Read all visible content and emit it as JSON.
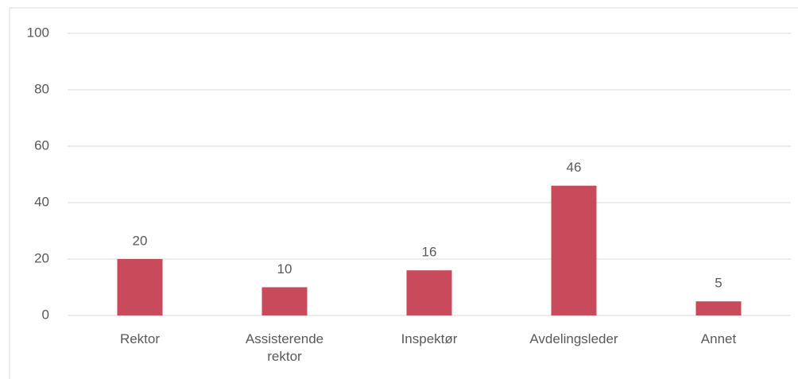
{
  "chart_data": {
    "type": "bar",
    "categories": [
      "Rektor",
      "Assisterende rektor",
      "Inspektør",
      "Avdelingsleder",
      "Annet"
    ],
    "values": [
      20,
      10,
      16,
      46,
      5
    ],
    "color": "#c84a5b",
    "ylim": [
      0,
      100
    ],
    "yticks": [
      0,
      20,
      40,
      60,
      80,
      100
    ],
    "grid": true
  }
}
